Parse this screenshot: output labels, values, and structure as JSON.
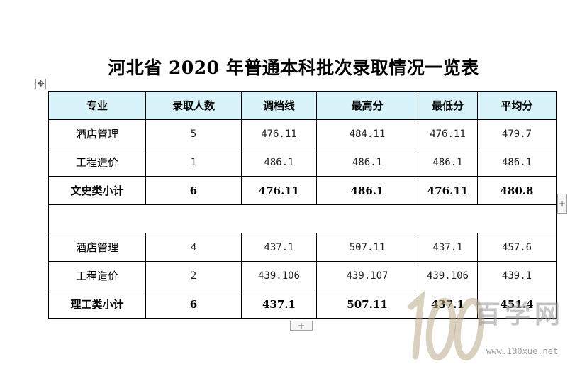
{
  "document": {
    "title": "河北省 2020 年普通本科批次录取情况一览表"
  },
  "table": {
    "headers": [
      "专业",
      "录取人数",
      "调档线",
      "最高分",
      "最低分",
      "平均分"
    ],
    "rows": [
      [
        "酒店管理",
        "5",
        "476.11",
        "484.11",
        "476.11",
        "479.7"
      ],
      [
        "工程造价",
        "1",
        "486.1",
        "486.1",
        "486.1",
        "486.1"
      ],
      [
        "文史类小计",
        "6",
        "476.11",
        "486.1",
        "476.11",
        "480.8"
      ],
      [
        "",
        "",
        "",
        "",
        "",
        ""
      ],
      [
        "酒店管理",
        "4",
        "437.1",
        "507.11",
        "437.1",
        "457.6"
      ],
      [
        "工程造价",
        "2",
        "439.106",
        "439.107",
        "439.106",
        "439.1"
      ],
      [
        "理工类小计",
        "6",
        "437.1",
        "507.11",
        "437.1",
        "451.4"
      ]
    ]
  },
  "controls": {
    "move_icon": "✥",
    "add_column_icon": "+",
    "add_row_icon": "+"
  },
  "watermark": {
    "logo_text": "100",
    "site_name": "百学网",
    "url": "www.100xue.net"
  },
  "colors": {
    "header_bg": "#d8f4fa",
    "border": "#000000"
  }
}
